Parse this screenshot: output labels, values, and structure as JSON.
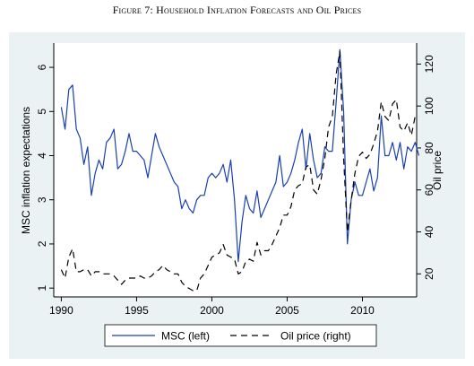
{
  "figure_title": "Figure 7: Household Inflation Forecasts and Oil Prices",
  "chart_data": {
    "type": "line",
    "title": "Figure 7: Household Inflation Forecasts and Oil Prices",
    "xlabel": "",
    "ylabel_left": "MSC inflation expectations",
    "ylabel_right": "Oil price",
    "xlim": [
      1989.5,
      2013.6
    ],
    "ylim_left": [
      0.8,
      6.55
    ],
    "ylim_right": [
      9,
      130
    ],
    "x_ticks": [
      1990,
      1995,
      2000,
      2005,
      2010
    ],
    "y_ticks_left": [
      1,
      2,
      3,
      4,
      5,
      6
    ],
    "y_ticks_right": [
      20,
      40,
      60,
      80,
      100,
      120
    ],
    "grid": false,
    "legend_position": "bottom",
    "colors": {
      "msc": "#1a3fb0",
      "oil": "#000000",
      "background": "#eaf2f3",
      "plot_background": "#ffffff"
    },
    "series": [
      {
        "name": "MSC (left)",
        "axis": "left",
        "style": "solid",
        "points": [
          [
            1990.0,
            5.1
          ],
          [
            1990.25,
            4.6
          ],
          [
            1990.5,
            5.5
          ],
          [
            1990.75,
            5.6
          ],
          [
            1991.0,
            4.6
          ],
          [
            1991.25,
            4.4
          ],
          [
            1991.5,
            3.8
          ],
          [
            1991.75,
            4.2
          ],
          [
            1992.0,
            3.1
          ],
          [
            1992.25,
            3.6
          ],
          [
            1992.5,
            3.9
          ],
          [
            1992.75,
            3.7
          ],
          [
            1993.0,
            4.3
          ],
          [
            1993.25,
            4.4
          ],
          [
            1993.5,
            4.6
          ],
          [
            1993.75,
            3.7
          ],
          [
            1994.0,
            3.8
          ],
          [
            1994.25,
            4.1
          ],
          [
            1994.5,
            4.5
          ],
          [
            1994.75,
            4.1
          ],
          [
            1995.0,
            4.1
          ],
          [
            1995.25,
            4.0
          ],
          [
            1995.5,
            3.9
          ],
          [
            1995.75,
            3.5
          ],
          [
            1996.0,
            4.0
          ],
          [
            1996.25,
            4.5
          ],
          [
            1996.5,
            4.2
          ],
          [
            1996.75,
            4.0
          ],
          [
            1997.0,
            3.8
          ],
          [
            1997.25,
            3.6
          ],
          [
            1997.5,
            3.4
          ],
          [
            1997.75,
            3.3
          ],
          [
            1998.0,
            2.8
          ],
          [
            1998.25,
            3.0
          ],
          [
            1998.5,
            2.8
          ],
          [
            1998.75,
            2.7
          ],
          [
            1999.0,
            3.0
          ],
          [
            1999.25,
            3.1
          ],
          [
            1999.5,
            3.1
          ],
          [
            1999.75,
            3.5
          ],
          [
            2000.0,
            3.6
          ],
          [
            2000.25,
            3.5
          ],
          [
            2000.5,
            3.6
          ],
          [
            2000.75,
            3.8
          ],
          [
            2001.0,
            3.4
          ],
          [
            2001.25,
            3.9
          ],
          [
            2001.5,
            3.0
          ],
          [
            2001.75,
            1.6
          ],
          [
            2002.0,
            2.5
          ],
          [
            2002.25,
            3.1
          ],
          [
            2002.5,
            2.8
          ],
          [
            2002.75,
            2.7
          ],
          [
            2003.0,
            3.2
          ],
          [
            2003.25,
            2.6
          ],
          [
            2003.5,
            2.8
          ],
          [
            2003.75,
            3.0
          ],
          [
            2004.0,
            3.2
          ],
          [
            2004.25,
            3.4
          ],
          [
            2004.5,
            4.0
          ],
          [
            2004.75,
            3.3
          ],
          [
            2005.0,
            3.4
          ],
          [
            2005.25,
            3.6
          ],
          [
            2005.5,
            3.9
          ],
          [
            2005.75,
            4.3
          ],
          [
            2006.0,
            4.6
          ],
          [
            2006.25,
            3.7
          ],
          [
            2006.5,
            4.5
          ],
          [
            2006.75,
            3.9
          ],
          [
            2007.0,
            3.5
          ],
          [
            2007.25,
            3.6
          ],
          [
            2007.5,
            4.2
          ],
          [
            2007.75,
            4.1
          ],
          [
            2008.0,
            4.1
          ],
          [
            2008.25,
            5.2
          ],
          [
            2008.5,
            6.4
          ],
          [
            2008.75,
            5.0
          ],
          [
            2009.0,
            2.0
          ],
          [
            2009.25,
            3.0
          ],
          [
            2009.5,
            3.4
          ],
          [
            2009.75,
            3.1
          ],
          [
            2010.0,
            3.1
          ],
          [
            2010.25,
            3.4
          ],
          [
            2010.5,
            3.7
          ],
          [
            2010.75,
            3.2
          ],
          [
            2011.0,
            3.5
          ],
          [
            2011.25,
            4.9
          ],
          [
            2011.5,
            4.0
          ],
          [
            2011.75,
            4.0
          ],
          [
            2012.0,
            4.3
          ],
          [
            2012.25,
            3.9
          ],
          [
            2012.5,
            4.3
          ],
          [
            2012.75,
            3.7
          ],
          [
            2013.0,
            4.2
          ],
          [
            2013.25,
            4.1
          ],
          [
            2013.5,
            4.3
          ],
          [
            2013.75,
            4.0
          ]
        ]
      },
      {
        "name": "Oil price (right)",
        "axis": "right",
        "style": "dashed",
        "points": [
          [
            1990.0,
            22
          ],
          [
            1990.25,
            18
          ],
          [
            1990.5,
            28
          ],
          [
            1990.75,
            32
          ],
          [
            1991.0,
            21
          ],
          [
            1991.25,
            21
          ],
          [
            1991.5,
            22
          ],
          [
            1991.75,
            22
          ],
          [
            1992.0,
            19
          ],
          [
            1992.25,
            21
          ],
          [
            1992.5,
            21
          ],
          [
            1992.75,
            20
          ],
          [
            1993.0,
            20
          ],
          [
            1993.25,
            20
          ],
          [
            1993.5,
            19
          ],
          [
            1993.75,
            17
          ],
          [
            1994.0,
            15
          ],
          [
            1994.25,
            17
          ],
          [
            1994.5,
            18
          ],
          [
            1994.75,
            18
          ],
          [
            1995.0,
            18
          ],
          [
            1995.25,
            19
          ],
          [
            1995.5,
            18
          ],
          [
            1995.75,
            18
          ],
          [
            1996.0,
            19
          ],
          [
            1996.25,
            21
          ],
          [
            1996.5,
            22
          ],
          [
            1996.75,
            24
          ],
          [
            1997.0,
            22
          ],
          [
            1997.25,
            21
          ],
          [
            1997.5,
            20
          ],
          [
            1997.75,
            20
          ],
          [
            1998.0,
            16
          ],
          [
            1998.25,
            14
          ],
          [
            1998.5,
            13
          ],
          [
            1998.75,
            12
          ],
          [
            1999.0,
            12
          ],
          [
            1999.25,
            18
          ],
          [
            1999.5,
            20
          ],
          [
            1999.75,
            24
          ],
          [
            2000.0,
            28
          ],
          [
            2000.25,
            29
          ],
          [
            2000.5,
            30
          ],
          [
            2000.75,
            34
          ],
          [
            2001.0,
            29
          ],
          [
            2001.25,
            28
          ],
          [
            2001.5,
            27
          ],
          [
            2001.75,
            20
          ],
          [
            2002.0,
            21
          ],
          [
            2002.25,
            26
          ],
          [
            2002.5,
            27
          ],
          [
            2002.75,
            26
          ],
          [
            2003.0,
            35
          ],
          [
            2003.25,
            29
          ],
          [
            2003.5,
            31
          ],
          [
            2003.75,
            31
          ],
          [
            2004.0,
            34
          ],
          [
            2004.25,
            38
          ],
          [
            2004.5,
            42
          ],
          [
            2004.75,
            48
          ],
          [
            2005.0,
            48
          ],
          [
            2005.25,
            52
          ],
          [
            2005.5,
            60
          ],
          [
            2005.75,
            62
          ],
          [
            2006.0,
            63
          ],
          [
            2006.25,
            71
          ],
          [
            2006.5,
            72
          ],
          [
            2006.75,
            60
          ],
          [
            2007.0,
            58
          ],
          [
            2007.25,
            65
          ],
          [
            2007.5,
            75
          ],
          [
            2007.75,
            90
          ],
          [
            2008.0,
            95
          ],
          [
            2008.25,
            115
          ],
          [
            2008.5,
            126
          ],
          [
            2008.75,
            75
          ],
          [
            2009.0,
            40
          ],
          [
            2009.25,
            55
          ],
          [
            2009.5,
            68
          ],
          [
            2009.75,
            76
          ],
          [
            2010.0,
            78
          ],
          [
            2010.25,
            75
          ],
          [
            2010.5,
            77
          ],
          [
            2010.75,
            82
          ],
          [
            2011.0,
            88
          ],
          [
            2011.25,
            102
          ],
          [
            2011.5,
            95
          ],
          [
            2011.75,
            93
          ],
          [
            2012.0,
            101
          ],
          [
            2012.25,
            103
          ],
          [
            2012.5,
            90
          ],
          [
            2012.75,
            88
          ],
          [
            2013.0,
            92
          ],
          [
            2013.25,
            86
          ],
          [
            2013.5,
            95
          ],
          [
            2013.75,
            95
          ]
        ]
      }
    ]
  }
}
